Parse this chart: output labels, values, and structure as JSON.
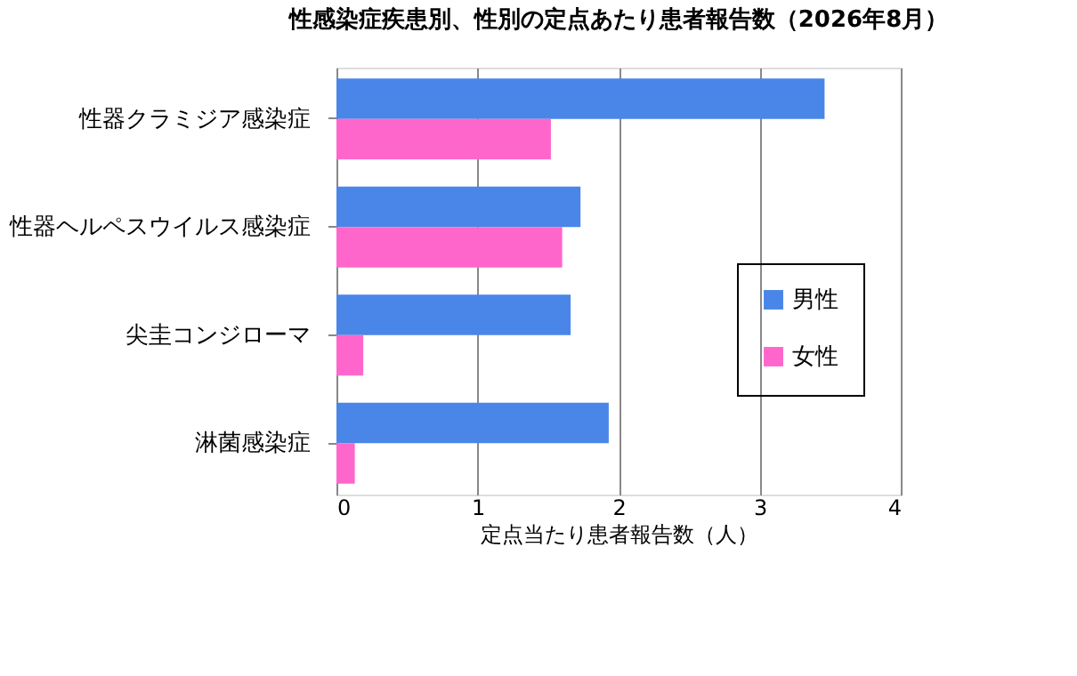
{
  "chart_data": {
    "type": "bar",
    "orientation": "horizontal",
    "title": "性感染症疾患別、性別の定点あたり患者報告数（2026年8月）",
    "xlabel": "定点当たり患者報告数（人）",
    "categories": [
      "性器クラミジア感染症",
      "性器ヘルペスウイルス感染症",
      "尖圭コンジローマ",
      "淋菌感染症"
    ],
    "series": [
      {
        "name": "男性",
        "color": "#4a86e8",
        "values": [
          3.46,
          1.73,
          1.66,
          1.93
        ]
      },
      {
        "name": "女性",
        "color": "#ff66cc",
        "values": [
          1.52,
          1.6,
          0.19,
          0.13
        ]
      }
    ],
    "xlim": [
      0,
      4
    ],
    "xticks": [
      0,
      1,
      2,
      3,
      4
    ],
    "grid": "x",
    "legend": "right"
  }
}
